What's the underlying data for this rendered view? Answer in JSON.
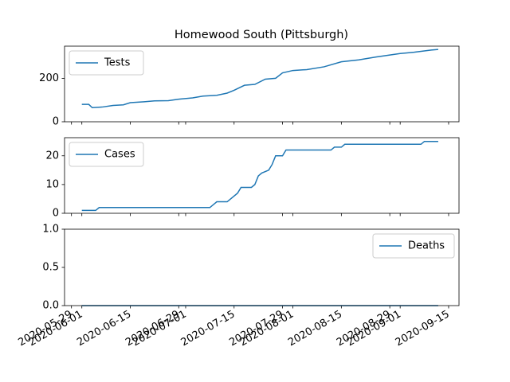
{
  "chart_data": [
    {
      "type": "line",
      "title": "Homewood South (Pittsburgh)",
      "x": [
        "2020-06-01",
        "2020-06-03",
        "2020-06-04",
        "2020-06-07",
        "2020-06-10",
        "2020-06-13",
        "2020-06-15",
        "2020-06-19",
        "2020-06-22",
        "2020-06-26",
        "2020-06-29",
        "2020-07-03",
        "2020-07-06",
        "2020-07-10",
        "2020-07-13",
        "2020-07-15",
        "2020-07-18",
        "2020-07-21",
        "2020-07-24",
        "2020-07-27",
        "2020-07-29",
        "2020-08-01",
        "2020-08-05",
        "2020-08-10",
        "2020-08-15",
        "2020-08-20",
        "2020-08-25",
        "2020-09-01",
        "2020-09-05",
        "2020-09-10",
        "2020-09-12"
      ],
      "series": [
        {
          "name": "Tests",
          "color": "#1f77b4",
          "values": [
            80,
            80,
            65,
            68,
            75,
            78,
            88,
            92,
            96,
            97,
            104,
            110,
            118,
            122,
            132,
            145,
            168,
            172,
            196,
            200,
            225,
            236,
            240,
            253,
            276,
            285,
            298,
            314,
            320,
            330,
            333
          ]
        }
      ],
      "xlim": [
        "2020-05-27",
        "2020-09-18"
      ],
      "ylim": [
        0,
        348
      ],
      "yticks": [
        0,
        200
      ],
      "legend": "upper left"
    },
    {
      "type": "line",
      "x": [
        "2020-06-01",
        "2020-06-05",
        "2020-06-06",
        "2020-07-08",
        "2020-07-10",
        "2020-07-13",
        "2020-07-16",
        "2020-07-17",
        "2020-07-20",
        "2020-07-21",
        "2020-07-22",
        "2020-07-23",
        "2020-07-25",
        "2020-07-26",
        "2020-07-27",
        "2020-07-29",
        "2020-07-30",
        "2020-08-12",
        "2020-08-13",
        "2020-08-15",
        "2020-08-16",
        "2020-09-07",
        "2020-09-08",
        "2020-09-12"
      ],
      "series": [
        {
          "name": "Cases",
          "color": "#1f77b4",
          "values": [
            1,
            1,
            2,
            2,
            4,
            4,
            7,
            9,
            9,
            10,
            13,
            14,
            15,
            17,
            20,
            20,
            22,
            22,
            23,
            23,
            24,
            24,
            25,
            25
          ]
        }
      ],
      "xlim": [
        "2020-05-27",
        "2020-09-18"
      ],
      "ylim": [
        0,
        26.3
      ],
      "yticks": [
        0,
        10,
        20
      ],
      "legend": "upper left"
    },
    {
      "type": "line",
      "x": [
        "2020-06-01",
        "2020-09-12"
      ],
      "series": [
        {
          "name": "Deaths",
          "color": "#1f77b4",
          "values": [
            0,
            0
          ]
        }
      ],
      "xlim": [
        "2020-05-27",
        "2020-09-18"
      ],
      "ylim": [
        0,
        1
      ],
      "yticks": [
        {
          "value": 0,
          "label": "0.0"
        },
        {
          "value": 0.5,
          "label": "0.5"
        },
        {
          "value": 1,
          "label": "1.0"
        }
      ],
      "xticks": [
        "2020-05-29",
        "2020-06-01",
        "2020-06-15",
        "2020-06-29",
        "2020-07-01",
        "2020-07-15",
        "2020-07-29",
        "2020-08-01",
        "2020-08-15",
        "2020-08-29",
        "2020-09-01",
        "2020-09-15"
      ],
      "legend": "upper right"
    }
  ]
}
